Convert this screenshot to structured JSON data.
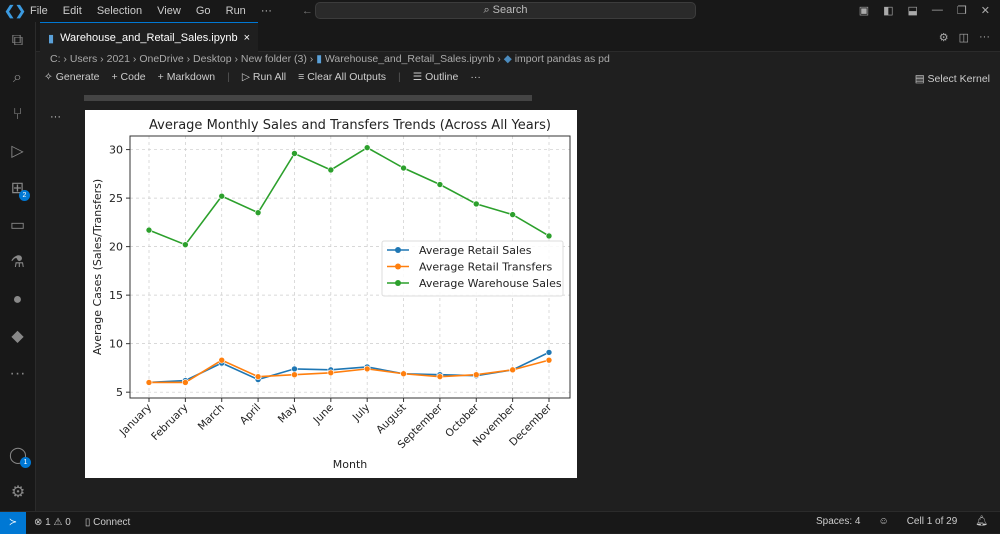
{
  "titlebar": {
    "menu": [
      "File",
      "Edit",
      "Selection",
      "View",
      "Go",
      "Run",
      "···"
    ],
    "search": "Search"
  },
  "activity": {
    "extensions_badge": "2",
    "accounts_badge": "1"
  },
  "tab": {
    "label": "Warehouse_and_Retail_Sales.ipynb",
    "close": "×"
  },
  "breadcrumb": [
    "C:",
    "Users",
    "2021",
    "OneDrive",
    "Desktop",
    "New folder (3)",
    "Warehouse_and_Retail_Sales.ipynb",
    "import pandas as pd"
  ],
  "toolbar": {
    "generate": "Generate",
    "code": "+ Code",
    "markdown": "+ Markdown",
    "run_all": "Run All",
    "clear": "Clear All Outputs",
    "outline": "Outline",
    "more": "···",
    "kernel": "Select Kernel"
  },
  "cell": {
    "more": "···"
  },
  "status": {
    "problems": "⊗ 1 ⚠ 0",
    "connect": "Connect",
    "spaces": "Spaces: 4",
    "cell": "Cell 1 of 29"
  },
  "chart_data": {
    "type": "line",
    "title": "Average Monthly Sales and Transfers Trends (Across All Years)",
    "xlabel": "Month",
    "ylabel": "Average Cases (Sales/Transfers)",
    "categories": [
      "January",
      "February",
      "March",
      "April",
      "May",
      "June",
      "July",
      "August",
      "September",
      "October",
      "November",
      "December"
    ],
    "yticks": [
      5,
      10,
      15,
      20,
      25,
      30
    ],
    "ylim": [
      4.4,
      31.4
    ],
    "grid": true,
    "legend": "center-right",
    "series": [
      {
        "name": "Average Retail Sales",
        "color": "#1f77b4",
        "values": [
          6.0,
          6.2,
          8.0,
          6.3,
          7.4,
          7.3,
          7.6,
          6.9,
          6.8,
          6.7,
          7.3,
          9.1
        ]
      },
      {
        "name": "Average Retail Transfers",
        "color": "#ff7f0e",
        "values": [
          6.0,
          6.0,
          8.3,
          6.6,
          6.8,
          7.0,
          7.4,
          6.9,
          6.6,
          6.8,
          7.3,
          8.3
        ]
      },
      {
        "name": "Average Warehouse Sales",
        "color": "#2ca02c",
        "values": [
          21.7,
          20.2,
          25.2,
          23.5,
          29.6,
          27.9,
          30.2,
          28.1,
          26.4,
          24.4,
          23.3,
          21.1
        ]
      }
    ]
  }
}
